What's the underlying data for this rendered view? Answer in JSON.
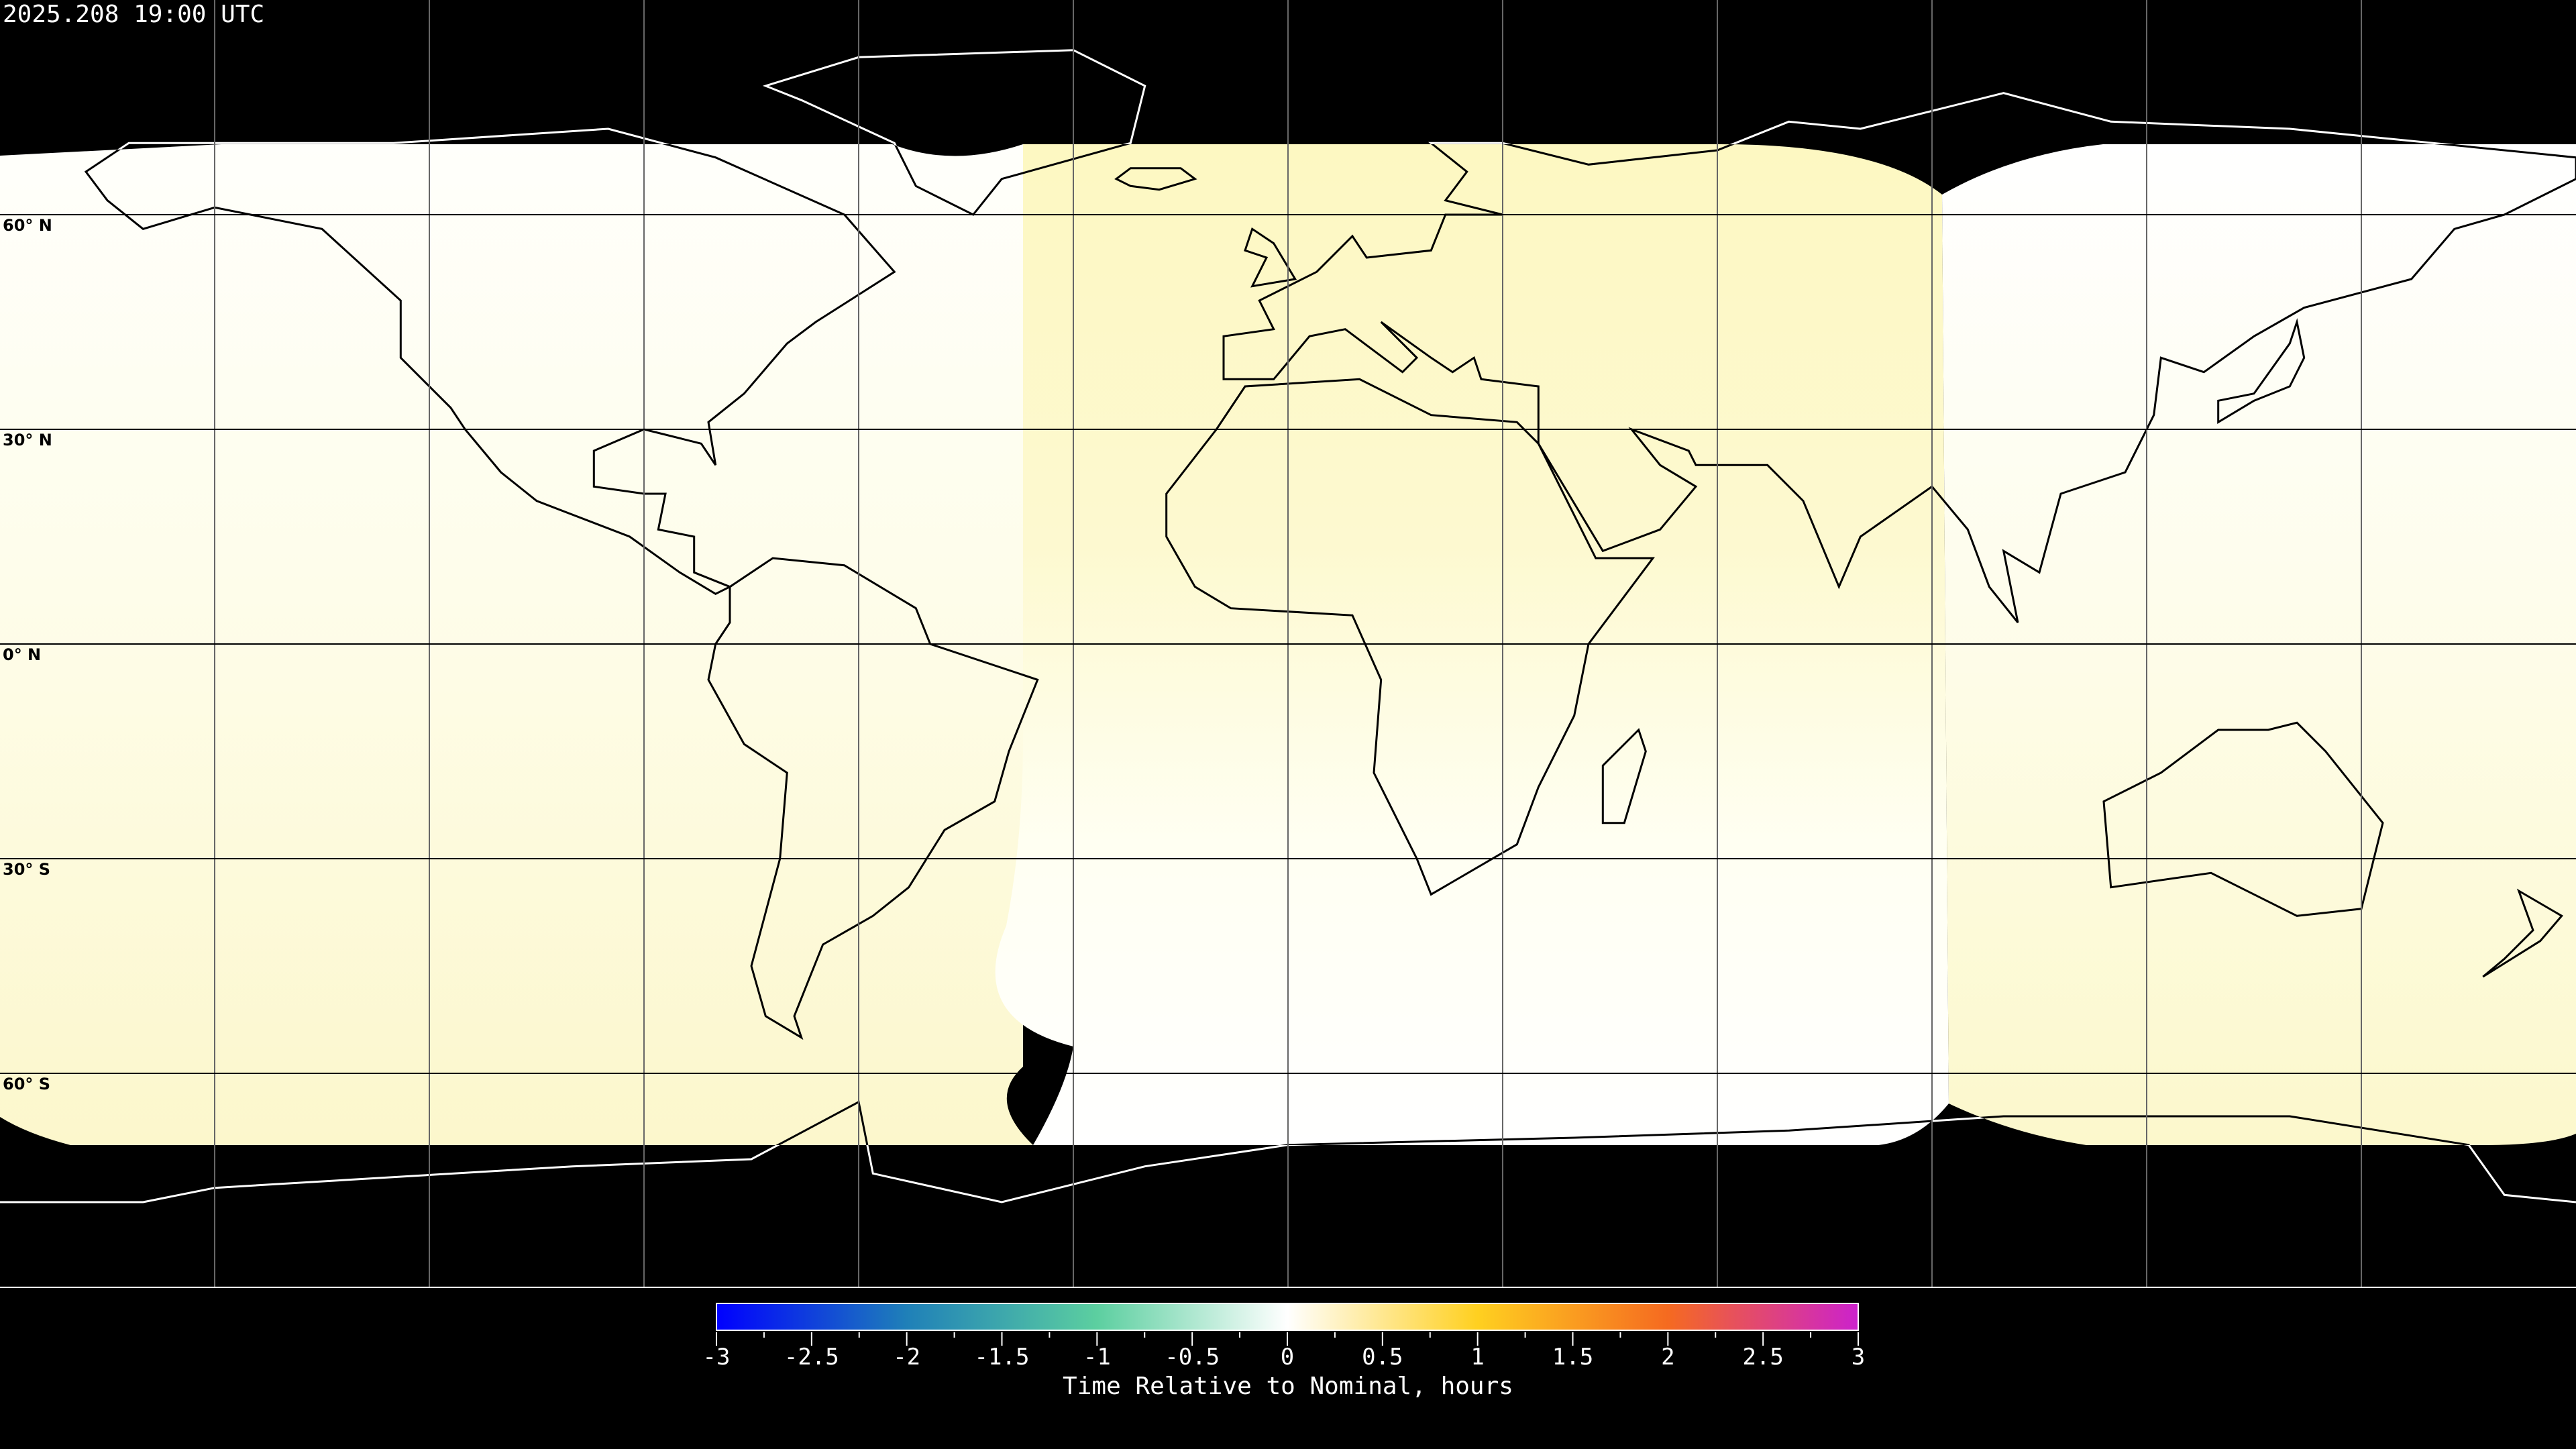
{
  "header": {
    "title": "2025.208 19:00 UTC"
  },
  "map": {
    "projection": "equirectangular",
    "lon_range": [
      -180,
      180
    ],
    "lat_range": [
      -90,
      90
    ],
    "graticule_step_deg": 30,
    "lat_labels": [
      "60° N",
      "30° N",
      "0° N",
      "30° S",
      "60° S"
    ],
    "colors": {
      "background": "#000000",
      "coverage_yellow": "#fdf8c4",
      "coverage_white": "#fffffc",
      "coastline_on_data": "#000000",
      "coastline_on_night": "#ffffff",
      "graticule": "#000000"
    }
  },
  "colorbar": {
    "min": -3,
    "max": 3,
    "tick_labels": [
      "-3",
      "-2.5",
      "-2",
      "-1.5",
      "-1",
      "-0.5",
      "0",
      "0.5",
      "1",
      "1.5",
      "2",
      "2.5",
      "3"
    ],
    "label": "Time Relative to Nominal, hours",
    "colors": [
      "#0000ff",
      "#1f80b8",
      "#5ccfa0",
      "#ffffff",
      "#ffd020",
      "#f56a20",
      "#cc22cc"
    ]
  }
}
